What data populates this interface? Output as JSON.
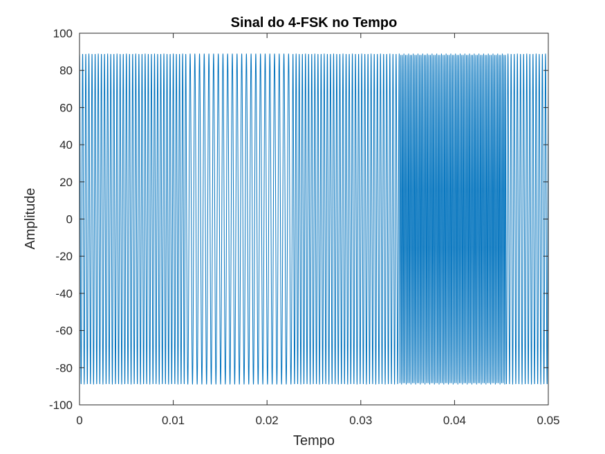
{
  "chart_data": {
    "type": "line",
    "title": "Sinal do 4-FSK no Tempo",
    "xlabel": "Tempo",
    "ylabel": "Amplitude",
    "xlim": [
      0,
      0.05
    ],
    "ylim": [
      -100,
      100
    ],
    "xticks": [
      0,
      0.01,
      0.02,
      0.03,
      0.04,
      0.05
    ],
    "xtick_labels": [
      "0",
      "0.01",
      "0.02",
      "0.03",
      "0.04",
      "0.05"
    ],
    "yticks": [
      -100,
      -80,
      -60,
      -40,
      -20,
      0,
      20,
      40,
      60,
      80,
      100
    ],
    "ytick_labels": [
      "-100",
      "-80",
      "-60",
      "-40",
      "-20",
      "0",
      "20",
      "40",
      "60",
      "80",
      "100"
    ],
    "grid": false,
    "line_color": "#0072BD",
    "amplitude": 89,
    "segments": [
      {
        "t_start": 0.0,
        "t_end": 0.0114,
        "frequency_hz": 3000,
        "amplitude": 89
      },
      {
        "t_start": 0.0114,
        "t_end": 0.0227,
        "frequency_hz": 2000,
        "amplitude": 89
      },
      {
        "t_start": 0.0227,
        "t_end": 0.0341,
        "frequency_hz": 3000,
        "amplitude": 89
      },
      {
        "t_start": 0.0341,
        "t_end": 0.0455,
        "frequency_hz": 6000,
        "amplitude": 89
      },
      {
        "t_start": 0.0455,
        "t_end": 0.05,
        "frequency_hz": 3000,
        "amplitude": 89
      }
    ]
  }
}
